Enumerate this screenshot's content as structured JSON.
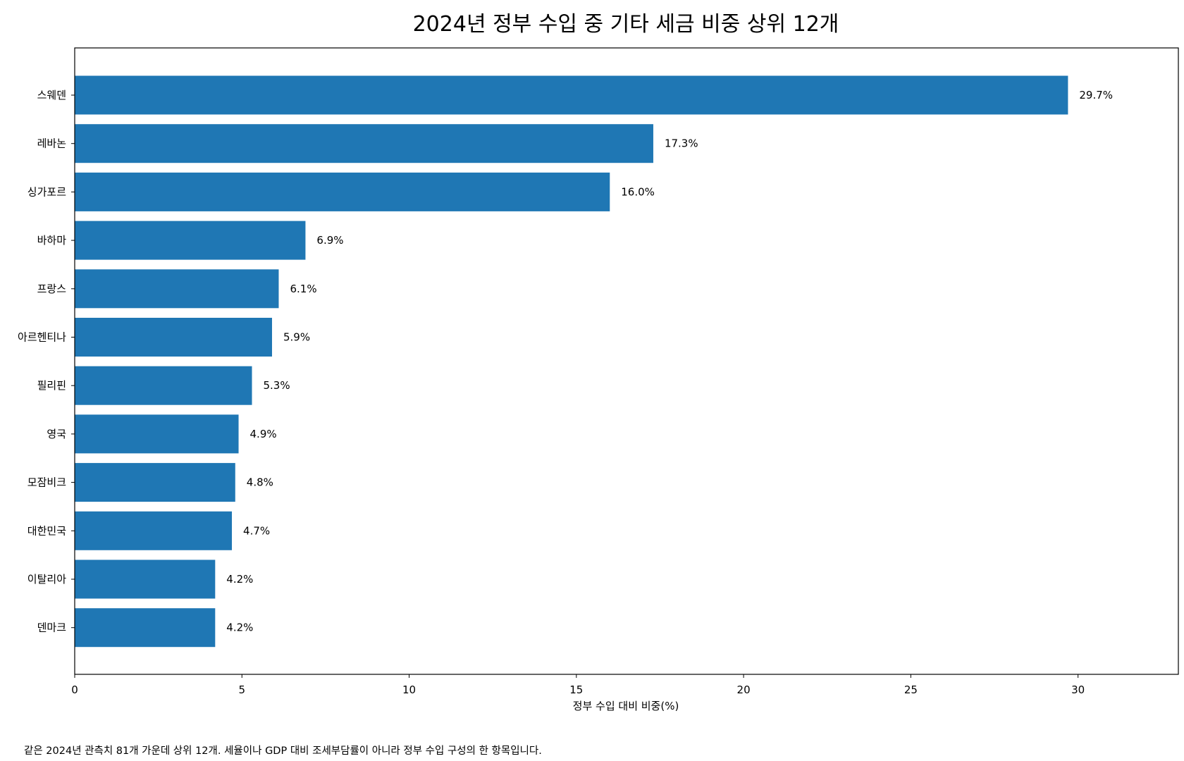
{
  "chart_data": {
    "type": "bar",
    "orientation": "horizontal",
    "title": "2024년 정부 수입 중 기타 세금 비중 상위 12개",
    "xlabel": "정부 수입 대비 비중(%)",
    "ylabel": "",
    "xlim": [
      0,
      33
    ],
    "xticks": [
      0,
      5,
      10,
      15,
      20,
      25,
      30
    ],
    "grid": false,
    "bar_color": "#1f77b4",
    "categories": [
      "스웨덴",
      "레바논",
      "싱가포르",
      "바하마",
      "프랑스",
      "아르헨티나",
      "필리핀",
      "영국",
      "모잠비크",
      "대한민국",
      "이탈리아",
      "덴마크"
    ],
    "values": [
      29.7,
      17.3,
      16.0,
      6.9,
      6.1,
      5.9,
      5.3,
      4.9,
      4.8,
      4.7,
      4.2,
      4.2
    ],
    "value_labels": [
      "29.7%",
      "17.3%",
      "16.0%",
      "6.9%",
      "6.1%",
      "5.9%",
      "5.3%",
      "4.9%",
      "4.8%",
      "4.7%",
      "4.2%",
      "4.2%"
    ]
  },
  "footnote": "같은 2024년 관측치 81개 가운데 상위 12개. 세율이나 GDP 대비 조세부담률이 아니라 정부 수입 구성의 한 항목입니다."
}
